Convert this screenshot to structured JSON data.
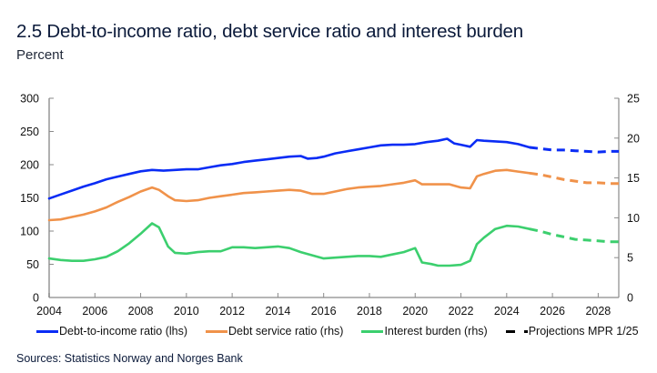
{
  "header": {
    "title": "2.5 Debt-to-income ratio, debt service ratio and interest burden",
    "subtitle": "Percent"
  },
  "footer": {
    "sources": "Sources: Statistics Norway and Norges Bank"
  },
  "colors": {
    "debt_to_income": "#0a2cf5",
    "debt_service": "#f0924a",
    "interest_burden": "#3ccf6e",
    "projections": "#000000",
    "axis": "#b0b0b0"
  },
  "chart_data": {
    "type": "line",
    "title": "2.5 Debt-to-income ratio, debt service ratio and interest burden",
    "subtitle": "Percent",
    "xlabel": "",
    "ylabel_left": "",
    "ylabel_right": "",
    "xlim": [
      2004,
      2028.9
    ],
    "ylim_left": [
      0,
      300
    ],
    "ylim_right": [
      0,
      25
    ],
    "x_ticks": [
      "2004",
      "2006",
      "2008",
      "2010",
      "2012",
      "2014",
      "2016",
      "2018",
      "2020",
      "2022",
      "2024",
      "2026",
      "2028"
    ],
    "y_ticks_left": [
      "0",
      "50",
      "100",
      "150",
      "200",
      "250",
      "300"
    ],
    "y_ticks_right": [
      "0",
      "5",
      "10",
      "15",
      "20",
      "25"
    ],
    "grid": false,
    "legend_position": "bottom",
    "legend": [
      {
        "key": "debt_to_income",
        "label": "Debt-to-income ratio (lhs)",
        "style": "solid"
      },
      {
        "key": "debt_service",
        "label": "Debt service ratio (rhs)",
        "style": "solid"
      },
      {
        "key": "interest_burden",
        "label": "Interest burden (rhs)",
        "style": "solid"
      },
      {
        "key": "projections",
        "label": "Projections MPR 1/25",
        "style": "dashed"
      }
    ],
    "series": [
      {
        "name": "Debt-to-income ratio (lhs)",
        "key": "debt_to_income",
        "axis": "left",
        "x": [
          2004.0,
          2004.5,
          2005.0,
          2005.5,
          2006.0,
          2006.5,
          2007.0,
          2007.5,
          2008.0,
          2008.5,
          2009.0,
          2009.5,
          2010.0,
          2010.5,
          2011.0,
          2011.5,
          2012.0,
          2012.5,
          2013.0,
          2013.5,
          2014.0,
          2014.5,
          2015.0,
          2015.3,
          2015.7,
          2016.0,
          2016.5,
          2017.0,
          2017.5,
          2018.0,
          2018.5,
          2019.0,
          2019.5,
          2020.0,
          2020.5,
          2021.0,
          2021.4,
          2021.7,
          2022.0,
          2022.4,
          2022.7,
          2023.0,
          2023.5,
          2024.0,
          2024.5,
          2025.0
        ],
        "values": [
          149,
          155,
          161,
          167,
          172,
          178,
          182,
          186,
          190,
          192,
          191,
          192,
          193,
          193,
          196,
          199,
          201,
          204,
          206,
          208,
          210,
          212,
          213,
          209,
          210,
          212,
          217,
          220,
          223,
          226,
          229,
          230,
          230,
          231,
          234,
          236,
          239,
          232,
          230,
          227,
          237,
          236,
          235,
          234,
          231,
          226
        ],
        "projection": {
          "x": [
            2025.0,
            2025.5,
            2026.0,
            2026.5,
            2027.0,
            2027.5,
            2028.0,
            2028.5,
            2028.9
          ],
          "values": [
            226,
            224,
            222,
            222,
            221,
            220,
            219,
            220,
            220
          ]
        }
      },
      {
        "name": "Debt service ratio (rhs)",
        "key": "debt_service",
        "axis": "right",
        "x": [
          2004.0,
          2004.5,
          2005.0,
          2005.5,
          2006.0,
          2006.5,
          2007.0,
          2007.5,
          2008.0,
          2008.5,
          2008.8,
          2009.2,
          2009.5,
          2010.0,
          2010.5,
          2011.0,
          2011.5,
          2012.0,
          2012.5,
          2013.0,
          2013.5,
          2014.0,
          2014.5,
          2015.0,
          2015.5,
          2016.0,
          2016.5,
          2017.0,
          2017.5,
          2018.0,
          2018.5,
          2019.0,
          2019.5,
          2020.0,
          2020.3,
          2020.7,
          2021.0,
          2021.5,
          2022.0,
          2022.4,
          2022.7,
          2023.0,
          2023.5,
          2024.0,
          2024.5,
          2025.0
        ],
        "values": [
          9.7,
          9.8,
          10.1,
          10.4,
          10.8,
          11.3,
          12.0,
          12.6,
          13.3,
          13.8,
          13.5,
          12.7,
          12.2,
          12.1,
          12.2,
          12.5,
          12.7,
          12.9,
          13.1,
          13.2,
          13.3,
          13.4,
          13.5,
          13.4,
          13.0,
          13.0,
          13.3,
          13.6,
          13.8,
          13.9,
          14.0,
          14.2,
          14.4,
          14.7,
          14.2,
          14.2,
          14.2,
          14.2,
          13.8,
          13.7,
          15.2,
          15.5,
          15.9,
          16.0,
          15.8,
          15.6
        ],
        "projection": {
          "x": [
            2025.0,
            2025.5,
            2026.0,
            2026.5,
            2027.0,
            2027.5,
            2028.0,
            2028.5,
            2028.9
          ],
          "values": [
            15.6,
            15.4,
            15.1,
            14.8,
            14.6,
            14.4,
            14.4,
            14.3,
            14.3
          ]
        }
      },
      {
        "name": "Interest burden (rhs)",
        "key": "interest_burden",
        "axis": "right",
        "x": [
          2004.0,
          2004.5,
          2005.0,
          2005.5,
          2006.0,
          2006.5,
          2007.0,
          2007.5,
          2008.0,
          2008.5,
          2008.8,
          2009.2,
          2009.5,
          2010.0,
          2010.5,
          2011.0,
          2011.5,
          2012.0,
          2012.5,
          2013.0,
          2013.5,
          2014.0,
          2014.5,
          2015.0,
          2015.5,
          2016.0,
          2016.5,
          2017.0,
          2017.5,
          2018.0,
          2018.5,
          2019.0,
          2019.5,
          2020.0,
          2020.3,
          2020.7,
          2021.0,
          2021.5,
          2022.0,
          2022.4,
          2022.7,
          2023.0,
          2023.5,
          2024.0,
          2024.5,
          2025.0
        ],
        "values": [
          4.9,
          4.7,
          4.6,
          4.6,
          4.8,
          5.1,
          5.8,
          6.8,
          8.0,
          9.3,
          8.8,
          6.4,
          5.6,
          5.5,
          5.7,
          5.8,
          5.8,
          6.3,
          6.3,
          6.2,
          6.3,
          6.4,
          6.2,
          5.7,
          5.3,
          4.9,
          5.0,
          5.1,
          5.2,
          5.2,
          5.1,
          5.4,
          5.7,
          6.2,
          4.4,
          4.2,
          4.0,
          4.0,
          4.1,
          4.6,
          6.7,
          7.5,
          8.6,
          9.0,
          8.9,
          8.6
        ],
        "projection": {
          "x": [
            2025.0,
            2025.5,
            2026.0,
            2026.5,
            2027.0,
            2027.5,
            2028.0,
            2028.5,
            2028.9
          ],
          "values": [
            8.6,
            8.3,
            7.9,
            7.6,
            7.3,
            7.2,
            7.1,
            7.0,
            7.0
          ]
        }
      }
    ]
  }
}
